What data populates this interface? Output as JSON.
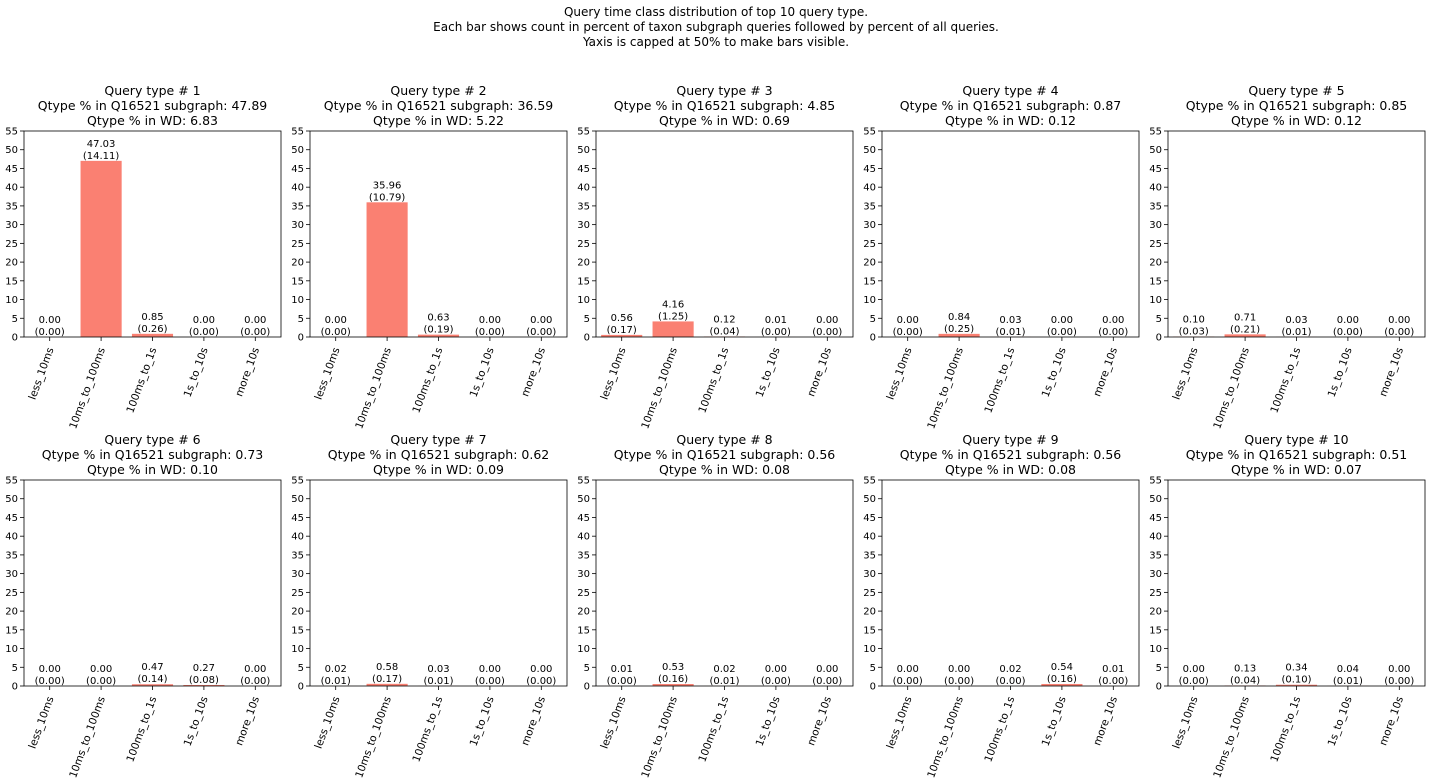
{
  "figure": {
    "title_lines": [
      "Query time class distribution of top 10 query type.",
      "Each bar shows count in percent of taxon subgraph queries followed by percent of all queries.",
      "Yaxis is capped at 50% to make bars visible."
    ],
    "bar_color": "#fa8072"
  },
  "chart_data": [
    {
      "type": "bar",
      "title_lines": [
        "Query type # 1",
        "Qtype % in Q16521 subgraph: 47.89",
        "Qtype % in WD: 6.83"
      ],
      "categories": [
        "less_10ms",
        "10ms_to_100ms",
        "100ms_to_1s",
        "1s_to_10s",
        "more_10s"
      ],
      "values": [
        0.0,
        47.03,
        0.85,
        0.0,
        0.0
      ],
      "labels": [
        [
          "0.00",
          "(0.00)"
        ],
        [
          "47.03",
          "(14.11)"
        ],
        [
          "0.85",
          "(0.26)"
        ],
        [
          "0.00",
          "(0.00)"
        ],
        [
          "0.00",
          "(0.00)"
        ]
      ],
      "ylim": [
        0,
        55
      ],
      "yticks": [
        "0",
        "5",
        "10",
        "15",
        "20",
        "25",
        "30",
        "35",
        "40",
        "45",
        "50",
        "55"
      ]
    },
    {
      "type": "bar",
      "title_lines": [
        "Query type # 2",
        "Qtype % in Q16521 subgraph: 36.59",
        "Qtype % in WD: 5.22"
      ],
      "categories": [
        "less_10ms",
        "10ms_to_100ms",
        "100ms_to_1s",
        "1s_to_10s",
        "more_10s"
      ],
      "values": [
        0.0,
        35.96,
        0.63,
        0.0,
        0.0
      ],
      "labels": [
        [
          "0.00",
          "(0.00)"
        ],
        [
          "35.96",
          "(10.79)"
        ],
        [
          "0.63",
          "(0.19)"
        ],
        [
          "0.00",
          "(0.00)"
        ],
        [
          "0.00",
          "(0.00)"
        ]
      ],
      "ylim": [
        0,
        55
      ],
      "yticks": [
        "0",
        "5",
        "10",
        "15",
        "20",
        "25",
        "30",
        "35",
        "40",
        "45",
        "50",
        "55"
      ]
    },
    {
      "type": "bar",
      "title_lines": [
        "Query type # 3",
        "Qtype % in Q16521 subgraph: 4.85",
        "Qtype % in WD: 0.69"
      ],
      "categories": [
        "less_10ms",
        "10ms_to_100ms",
        "100ms_to_1s",
        "1s_to_10s",
        "more_10s"
      ],
      "values": [
        0.56,
        4.16,
        0.12,
        0.01,
        0.0
      ],
      "labels": [
        [
          "0.56",
          "(0.17)"
        ],
        [
          "4.16",
          "(1.25)"
        ],
        [
          "0.12",
          "(0.04)"
        ],
        [
          "0.01",
          "(0.00)"
        ],
        [
          "0.00",
          "(0.00)"
        ]
      ],
      "ylim": [
        0,
        55
      ],
      "yticks": [
        "0",
        "5",
        "10",
        "15",
        "20",
        "25",
        "30",
        "35",
        "40",
        "45",
        "50",
        "55"
      ]
    },
    {
      "type": "bar",
      "title_lines": [
        "Query type # 4",
        "Qtype % in Q16521 subgraph: 0.87",
        "Qtype % in WD: 0.12"
      ],
      "categories": [
        "less_10ms",
        "10ms_to_100ms",
        "100ms_to_1s",
        "1s_to_10s",
        "more_10s"
      ],
      "values": [
        0.0,
        0.84,
        0.03,
        0.0,
        0.0
      ],
      "labels": [
        [
          "0.00",
          "(0.00)"
        ],
        [
          "0.84",
          "(0.25)"
        ],
        [
          "0.03",
          "(0.01)"
        ],
        [
          "0.00",
          "(0.00)"
        ],
        [
          "0.00",
          "(0.00)"
        ]
      ],
      "ylim": [
        0,
        55
      ],
      "yticks": [
        "0",
        "5",
        "10",
        "15",
        "20",
        "25",
        "30",
        "35",
        "40",
        "45",
        "50",
        "55"
      ]
    },
    {
      "type": "bar",
      "title_lines": [
        "Query type # 5",
        "Qtype % in Q16521 subgraph: 0.85",
        "Qtype % in WD: 0.12"
      ],
      "categories": [
        "less_10ms",
        "10ms_to_100ms",
        "100ms_to_1s",
        "1s_to_10s",
        "more_10s"
      ],
      "values": [
        0.1,
        0.71,
        0.03,
        0.0,
        0.0
      ],
      "labels": [
        [
          "0.10",
          "(0.03)"
        ],
        [
          "0.71",
          "(0.21)"
        ],
        [
          "0.03",
          "(0.01)"
        ],
        [
          "0.00",
          "(0.00)"
        ],
        [
          "0.00",
          "(0.00)"
        ]
      ],
      "ylim": [
        0,
        55
      ],
      "yticks": [
        "0",
        "5",
        "10",
        "15",
        "20",
        "25",
        "30",
        "35",
        "40",
        "45",
        "50",
        "55"
      ]
    },
    {
      "type": "bar",
      "title_lines": [
        "Query type # 6",
        "Qtype % in Q16521 subgraph: 0.73",
        "Qtype % in WD: 0.10"
      ],
      "categories": [
        "less_10ms",
        "10ms_to_100ms",
        "100ms_to_1s",
        "1s_to_10s",
        "more_10s"
      ],
      "values": [
        0.0,
        0.0,
        0.47,
        0.27,
        0.0
      ],
      "labels": [
        [
          "0.00",
          "(0.00)"
        ],
        [
          "0.00",
          "(0.00)"
        ],
        [
          "0.47",
          "(0.14)"
        ],
        [
          "0.27",
          "(0.08)"
        ],
        [
          "0.00",
          "(0.00)"
        ]
      ],
      "ylim": [
        0,
        55
      ],
      "yticks": [
        "0",
        "5",
        "10",
        "15",
        "20",
        "25",
        "30",
        "35",
        "40",
        "45",
        "50",
        "55"
      ]
    },
    {
      "type": "bar",
      "title_lines": [
        "Query type # 7",
        "Qtype % in Q16521 subgraph: 0.62",
        "Qtype % in WD: 0.09"
      ],
      "categories": [
        "less_10ms",
        "10ms_to_100ms",
        "100ms_to_1s",
        "1s_to_10s",
        "more_10s"
      ],
      "values": [
        0.02,
        0.58,
        0.03,
        0.0,
        0.0
      ],
      "labels": [
        [
          "0.02",
          "(0.01)"
        ],
        [
          "0.58",
          "(0.17)"
        ],
        [
          "0.03",
          "(0.01)"
        ],
        [
          "0.00",
          "(0.00)"
        ],
        [
          "0.00",
          "(0.00)"
        ]
      ],
      "ylim": [
        0,
        55
      ],
      "yticks": [
        "0",
        "5",
        "10",
        "15",
        "20",
        "25",
        "30",
        "35",
        "40",
        "45",
        "50",
        "55"
      ]
    },
    {
      "type": "bar",
      "title_lines": [
        "Query type # 8",
        "Qtype % in Q16521 subgraph: 0.56",
        "Qtype % in WD: 0.08"
      ],
      "categories": [
        "less_10ms",
        "10ms_to_100ms",
        "100ms_to_1s",
        "1s_to_10s",
        "more_10s"
      ],
      "values": [
        0.01,
        0.53,
        0.02,
        0.0,
        0.0
      ],
      "labels": [
        [
          "0.01",
          "(0.00)"
        ],
        [
          "0.53",
          "(0.16)"
        ],
        [
          "0.02",
          "(0.01)"
        ],
        [
          "0.00",
          "(0.00)"
        ],
        [
          "0.00",
          "(0.00)"
        ]
      ],
      "ylim": [
        0,
        55
      ],
      "yticks": [
        "0",
        "5",
        "10",
        "15",
        "20",
        "25",
        "30",
        "35",
        "40",
        "45",
        "50",
        "55"
      ]
    },
    {
      "type": "bar",
      "title_lines": [
        "Query type # 9",
        "Qtype % in Q16521 subgraph: 0.56",
        "Qtype % in WD: 0.08"
      ],
      "categories": [
        "less_10ms",
        "10ms_to_100ms",
        "100ms_to_1s",
        "1s_to_10s",
        "more_10s"
      ],
      "values": [
        0.0,
        0.0,
        0.02,
        0.54,
        0.01
      ],
      "labels": [
        [
          "0.00",
          "(0.00)"
        ],
        [
          "0.00",
          "(0.00)"
        ],
        [
          "0.02",
          "(0.00)"
        ],
        [
          "0.54",
          "(0.16)"
        ],
        [
          "0.01",
          "(0.00)"
        ]
      ],
      "ylim": [
        0,
        55
      ],
      "yticks": [
        "0",
        "5",
        "10",
        "15",
        "20",
        "25",
        "30",
        "35",
        "40",
        "45",
        "50",
        "55"
      ]
    },
    {
      "type": "bar",
      "title_lines": [
        "Query type # 10",
        "Qtype % in Q16521 subgraph: 0.51",
        "Qtype % in WD: 0.07"
      ],
      "categories": [
        "less_10ms",
        "10ms_to_100ms",
        "100ms_to_1s",
        "1s_to_10s",
        "more_10s"
      ],
      "values": [
        0.0,
        0.13,
        0.34,
        0.04,
        0.0
      ],
      "labels": [
        [
          "0.00",
          "(0.00)"
        ],
        [
          "0.13",
          "(0.04)"
        ],
        [
          "0.34",
          "(0.10)"
        ],
        [
          "0.04",
          "(0.01)"
        ],
        [
          "0.00",
          "(0.00)"
        ]
      ],
      "ylim": [
        0,
        55
      ],
      "yticks": [
        "0",
        "5",
        "10",
        "15",
        "20",
        "25",
        "30",
        "35",
        "40",
        "45",
        "50",
        "55"
      ]
    }
  ]
}
